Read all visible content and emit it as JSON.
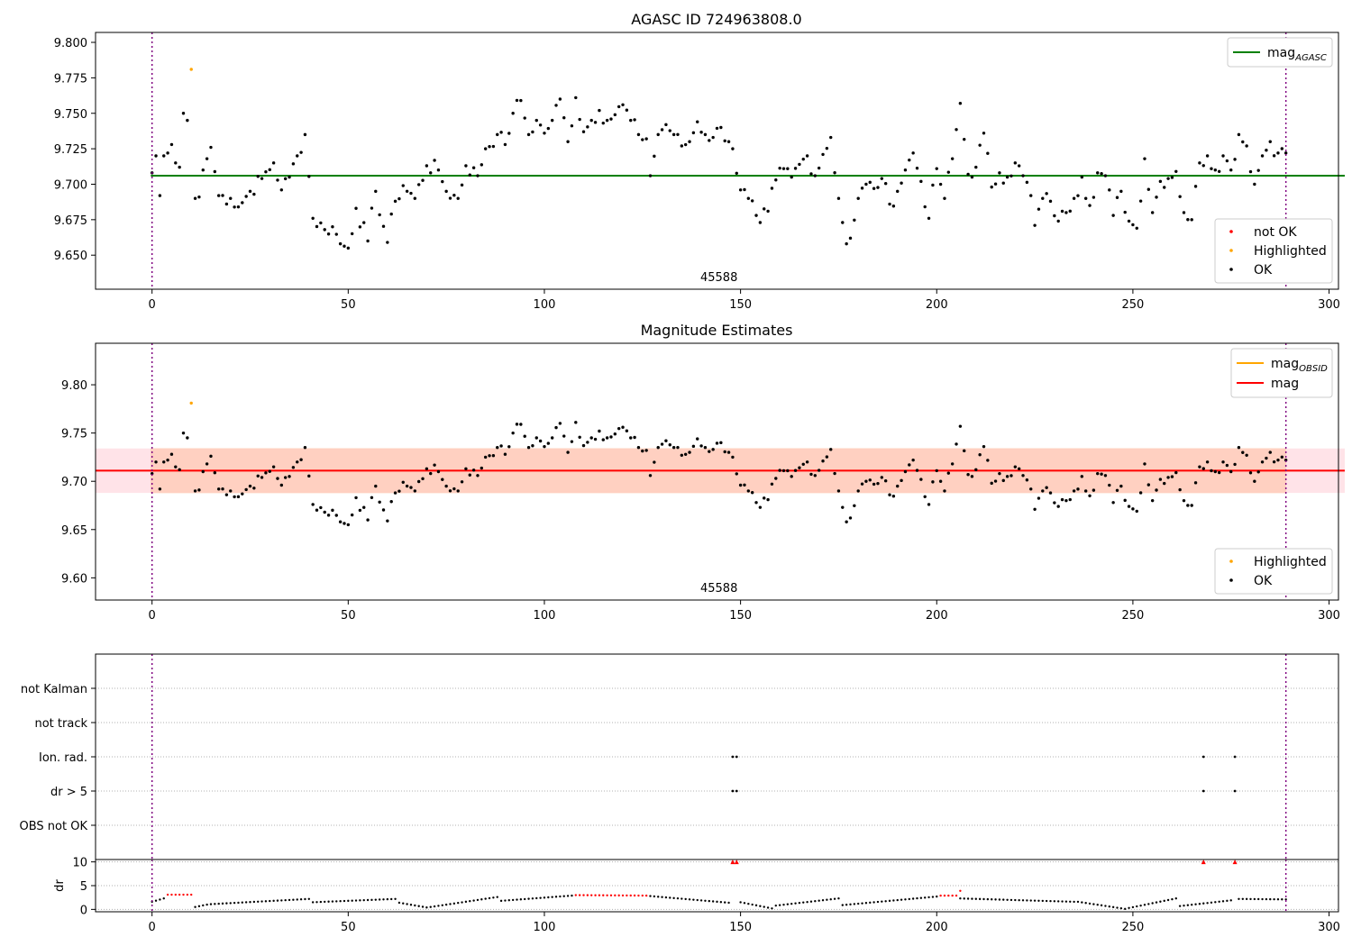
{
  "chart_data": [
    {
      "type": "scatter",
      "title": "AGASC ID 724963808.0",
      "xlim": [
        -14.4,
        302.4
      ],
      "ylim": [
        9.626,
        9.807
      ],
      "xticks": [
        0,
        50,
        100,
        150,
        200,
        250,
        300
      ],
      "yticks": [
        9.65,
        9.675,
        9.7,
        9.725,
        9.75,
        9.775,
        9.8
      ],
      "ytick_labels": [
        "9.650",
        "9.675",
        "9.700",
        "9.725",
        "9.750",
        "9.775",
        "9.800"
      ],
      "hlines": [
        {
          "name": "mag_AGASC",
          "y": 9.706,
          "color": "#008000",
          "x_range": [
            -0.3,
            304
          ]
        }
      ],
      "vlines": [
        0,
        289
      ],
      "obsid_label": {
        "text": "45588",
        "x": 144.5
      },
      "legend_top": [
        {
          "label": "mag",
          "sub": "AGASC",
          "color": "#008000",
          "kind": "line"
        }
      ],
      "legend_bottom": [
        {
          "label": "not OK",
          "color": "#ff0000",
          "kind": "dot"
        },
        {
          "label": "Highlighted",
          "color": "#ffa500",
          "kind": "dot"
        },
        {
          "label": "OK",
          "color": "#000000",
          "kind": "dot"
        }
      ],
      "highlighted_points": [
        [
          10,
          9.782
        ]
      ],
      "series_name": "mag"
    },
    {
      "type": "scatter",
      "title": "Magnitude Estimates",
      "xlim": [
        -14.4,
        302.4
      ],
      "ylim": [
        9.577,
        9.843
      ],
      "xticks": [
        0,
        50,
        100,
        150,
        200,
        250,
        300
      ],
      "yticks": [
        9.6,
        9.65,
        9.7,
        9.75,
        9.8
      ],
      "ytick_labels": [
        "9.60",
        "9.65",
        "9.70",
        "9.75",
        "9.80"
      ],
      "hlines": [
        {
          "name": "mag",
          "y": 9.711,
          "color": "#ff0000",
          "x_range": [
            -14.4,
            304
          ]
        }
      ],
      "band": {
        "low": 9.688,
        "high": 9.734,
        "x_range": [
          -14.4,
          304
        ]
      },
      "vlines": [
        0,
        289
      ],
      "obsid_label": {
        "text": "45588",
        "x": 144.5
      },
      "legend_top": [
        {
          "label": "mag",
          "sub": "OBSID",
          "color": "#ffa500",
          "kind": "line"
        },
        {
          "label": "mag",
          "sub": "",
          "color": "#ff0000",
          "kind": "line"
        }
      ],
      "legend_bottom": [
        {
          "label": "Highlighted",
          "color": "#ffa500",
          "kind": "dot"
        },
        {
          "label": "OK",
          "color": "#000000",
          "kind": "dot"
        }
      ],
      "highlighted_points": [
        [
          10,
          9.782
        ]
      ],
      "series_name": "mag"
    },
    {
      "type": "scatter",
      "title": "",
      "xlim": [
        -14.4,
        302.4
      ],
      "categories": [
        "not Kalman",
        "not track",
        "Ion. rad.",
        "dr > 5",
        "OBS not OK"
      ],
      "flags": {
        "Ion. rad.": [
          148,
          149,
          268,
          276
        ],
        "dr > 5": [
          148,
          149,
          268,
          276
        ]
      },
      "vlines": [
        0,
        289
      ]
    },
    {
      "type": "scatter",
      "title": "",
      "ylabel": "dr",
      "xlim": [
        -14.4,
        302.4
      ],
      "ylim": [
        -0.5,
        10.5
      ],
      "xticks": [
        0,
        50,
        100,
        150,
        200,
        250,
        300
      ],
      "yticks": [
        0,
        5,
        10
      ],
      "dr_segments": [
        {
          "x0": 0,
          "x1": 3,
          "y0": 1.6,
          "y1": 2.3
        },
        {
          "x0": 4,
          "x1": 10,
          "y0": 3.1,
          "y1": 3.1
        },
        {
          "x0": 11,
          "x1": 14,
          "y0": 0.5,
          "y1": 1.0
        },
        {
          "x0": 15,
          "x1": 40,
          "y0": 1.1,
          "y1": 2.2
        },
        {
          "x0": 41,
          "x1": 62,
          "y0": 1.5,
          "y1": 2.2
        },
        {
          "x0": 63,
          "x1": 70,
          "y0": 1.4,
          "y1": 0.4
        },
        {
          "x0": 71,
          "x1": 88,
          "y0": 0.5,
          "y1": 2.6
        },
        {
          "x0": 89,
          "x1": 107,
          "y0": 1.8,
          "y1": 2.9
        },
        {
          "x0": 108,
          "x1": 126,
          "y0": 3.0,
          "y1": 2.9
        },
        {
          "x0": 127,
          "x1": 147,
          "y0": 2.8,
          "y1": 1.4
        },
        {
          "x0": 150,
          "x1": 158,
          "y0": 1.5,
          "y1": 0.2
        },
        {
          "x0": 159,
          "x1": 175,
          "y0": 0.8,
          "y1": 2.3
        },
        {
          "x0": 176,
          "x1": 200,
          "y0": 0.9,
          "y1": 2.7
        },
        {
          "x0": 201,
          "x1": 205,
          "y0": 2.9,
          "y1": 2.9
        },
        {
          "x0": 206,
          "x1": 235,
          "y0": 2.3,
          "y1": 1.6
        },
        {
          "x0": 236,
          "x1": 248,
          "y0": 1.6,
          "y1": 0.1
        },
        {
          "x0": 249,
          "x1": 261,
          "y0": 0.3,
          "y1": 2.3
        },
        {
          "x0": 262,
          "x1": 275,
          "y0": 0.7,
          "y1": 1.9
        },
        {
          "x0": 277,
          "x1": 289,
          "y0": 2.2,
          "y1": 2.1
        }
      ],
      "dr_red_ranges": [
        [
          4,
          10
        ],
        [
          108,
          126
        ],
        [
          201,
          205
        ]
      ],
      "dr_extra_red": [
        [
          206,
          3.9
        ]
      ],
      "dr_triangles": [
        148,
        149,
        268,
        276
      ],
      "vlines": [
        0,
        289
      ]
    }
  ],
  "mag_anchors": [
    [
      0,
      9.708
    ],
    [
      1,
      9.72
    ],
    [
      2,
      9.692
    ],
    [
      3,
      9.72
    ],
    [
      4,
      9.722
    ],
    [
      5,
      9.728
    ],
    [
      6,
      9.715
    ],
    [
      7,
      9.712
    ],
    [
      8,
      9.75
    ],
    [
      9,
      9.745
    ],
    [
      10,
      9.781
    ],
    [
      11,
      9.69
    ],
    [
      12,
      9.691
    ],
    [
      13,
      9.71
    ],
    [
      14,
      9.718
    ],
    [
      15,
      9.726
    ],
    [
      17,
      9.692
    ],
    [
      20,
      9.69
    ],
    [
      22,
      9.684
    ],
    [
      25,
      9.695
    ],
    [
      28,
      9.704
    ],
    [
      31,
      9.715
    ],
    [
      33,
      9.696
    ],
    [
      35,
      9.705
    ],
    [
      37,
      9.72
    ],
    [
      39,
      9.735
    ],
    [
      41,
      9.676
    ],
    [
      44,
      9.668
    ],
    [
      46,
      9.67
    ],
    [
      48,
      9.658
    ],
    [
      50,
      9.655
    ],
    [
      52,
      9.683
    ],
    [
      55,
      9.66
    ],
    [
      57,
      9.695
    ],
    [
      60,
      9.659
    ],
    [
      62,
      9.688
    ],
    [
      64,
      9.699
    ],
    [
      67,
      9.69
    ],
    [
      70,
      9.713
    ],
    [
      73,
      9.71
    ],
    [
      75,
      9.695
    ],
    [
      78,
      9.69
    ],
    [
      80,
      9.713
    ],
    [
      83,
      9.706
    ],
    [
      85,
      9.725
    ],
    [
      88,
      9.735
    ],
    [
      90,
      9.728
    ],
    [
      92,
      9.75
    ],
    [
      94,
      9.759
    ],
    [
      96,
      9.735
    ],
    [
      98,
      9.745
    ],
    [
      100,
      9.736
    ],
    [
      102,
      9.745
    ],
    [
      104,
      9.76
    ],
    [
      106,
      9.73
    ],
    [
      108,
      9.761
    ],
    [
      110,
      9.737
    ],
    [
      112,
      9.745
    ],
    [
      114,
      9.752
    ],
    [
      116,
      9.745
    ],
    [
      118,
      9.749
    ],
    [
      120,
      9.756
    ],
    [
      122,
      9.745
    ],
    [
      124,
      9.735
    ],
    [
      126,
      9.732
    ],
    [
      127,
      9.706
    ],
    [
      129,
      9.735
    ],
    [
      131,
      9.742
    ],
    [
      133,
      9.735
    ],
    [
      135,
      9.727
    ],
    [
      137,
      9.73
    ],
    [
      139,
      9.744
    ],
    [
      141,
      9.735
    ],
    [
      143,
      9.733
    ],
    [
      145,
      9.74
    ],
    [
      147,
      9.73
    ],
    [
      148,
      9.725
    ],
    [
      150,
      9.696
    ],
    [
      152,
      9.69
    ],
    [
      154,
      9.678
    ],
    [
      155,
      9.673
    ],
    [
      157,
      9.681
    ],
    [
      159,
      9.703
    ],
    [
      161,
      9.711
    ],
    [
      163,
      9.705
    ],
    [
      165,
      9.714
    ],
    [
      167,
      9.72
    ],
    [
      169,
      9.706
    ],
    [
      171,
      9.721
    ],
    [
      173,
      9.733
    ],
    [
      175,
      9.69
    ],
    [
      176,
      9.673
    ],
    [
      177,
      9.658
    ],
    [
      178,
      9.662
    ],
    [
      180,
      9.69
    ],
    [
      182,
      9.7
    ],
    [
      184,
      9.697
    ],
    [
      186,
      9.704
    ],
    [
      188,
      9.686
    ],
    [
      190,
      9.695
    ],
    [
      192,
      9.71
    ],
    [
      194,
      9.722
    ],
    [
      196,
      9.702
    ],
    [
      198,
      9.676
    ],
    [
      200,
      9.711
    ],
    [
      202,
      9.69
    ],
    [
      204,
      9.718
    ],
    [
      206,
      9.757
    ],
    [
      208,
      9.707
    ],
    [
      210,
      9.712
    ],
    [
      212,
      9.736
    ],
    [
      214,
      9.698
    ],
    [
      216,
      9.708
    ],
    [
      218,
      9.705
    ],
    [
      220,
      9.715
    ],
    [
      222,
      9.706
    ],
    [
      224,
      9.692
    ],
    [
      225,
      9.671
    ],
    [
      227,
      9.69
    ],
    [
      229,
      9.688
    ],
    [
      231,
      9.674
    ],
    [
      233,
      9.68
    ],
    [
      235,
      9.69
    ],
    [
      237,
      9.705
    ],
    [
      239,
      9.685
    ],
    [
      241,
      9.708
    ],
    [
      243,
      9.706
    ],
    [
      245,
      9.678
    ],
    [
      247,
      9.695
    ],
    [
      249,
      9.674
    ],
    [
      251,
      9.669
    ],
    [
      253,
      9.718
    ],
    [
      255,
      9.68
    ],
    [
      257,
      9.702
    ],
    [
      259,
      9.704
    ],
    [
      261,
      9.709
    ],
    [
      263,
      9.68
    ],
    [
      265,
      9.675
    ],
    [
      267,
      9.715
    ],
    [
      269,
      9.72
    ],
    [
      271,
      9.71
    ],
    [
      273,
      9.72
    ],
    [
      275,
      9.71
    ],
    [
      277,
      9.735
    ],
    [
      279,
      9.727
    ],
    [
      281,
      9.7
    ],
    [
      283,
      9.72
    ],
    [
      285,
      9.73
    ],
    [
      287,
      9.722
    ],
    [
      289,
      9.722
    ]
  ]
}
